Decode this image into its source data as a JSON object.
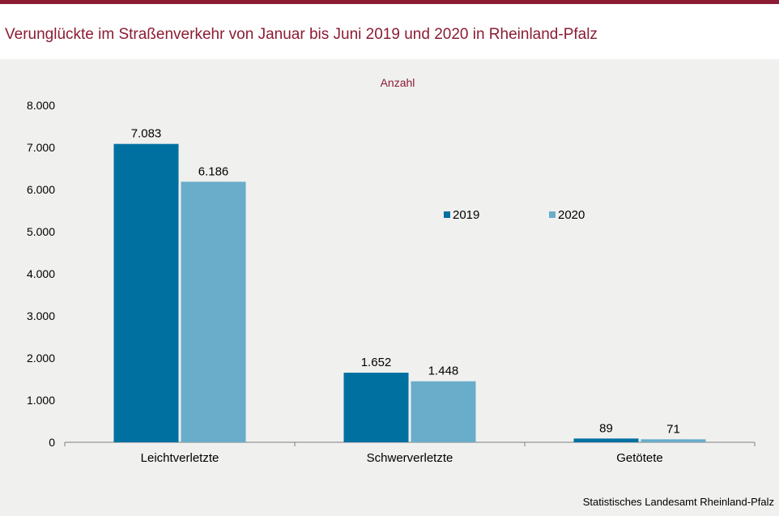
{
  "title": "Verunglückte im Straßenverkehr von Januar bis Juni 2019 und 2020 in Rheinland-Pfalz",
  "source": "Statistisches Landesamt Rheinland-Pfalz",
  "colors": {
    "accent": "#8b1c33",
    "series_2019": "#0070a0",
    "series_2020": "#69adca"
  },
  "chart_data": {
    "type": "bar",
    "title": "",
    "ylabel": "Anzahl",
    "xlabel": "",
    "categories": [
      "Leichtverletzte",
      "Schwerverletzte",
      "Getötete"
    ],
    "series": [
      {
        "name": "2019",
        "values": [
          7083,
          1652,
          89
        ],
        "labels": [
          "7.083",
          "1.652",
          "89"
        ]
      },
      {
        "name": "2020",
        "values": [
          6186,
          1448,
          71
        ],
        "labels": [
          "6.186",
          "1.448",
          "71"
        ]
      }
    ],
    "ylim": [
      0,
      8000
    ],
    "yticks": [
      0,
      1000,
      2000,
      3000,
      4000,
      5000,
      6000,
      7000,
      8000
    ],
    "ytick_labels": [
      "0",
      "1.000",
      "2.000",
      "3.000",
      "4.000",
      "5.000",
      "6.000",
      "7.000",
      "8.000"
    ],
    "grid": false,
    "legend": "top-right"
  }
}
